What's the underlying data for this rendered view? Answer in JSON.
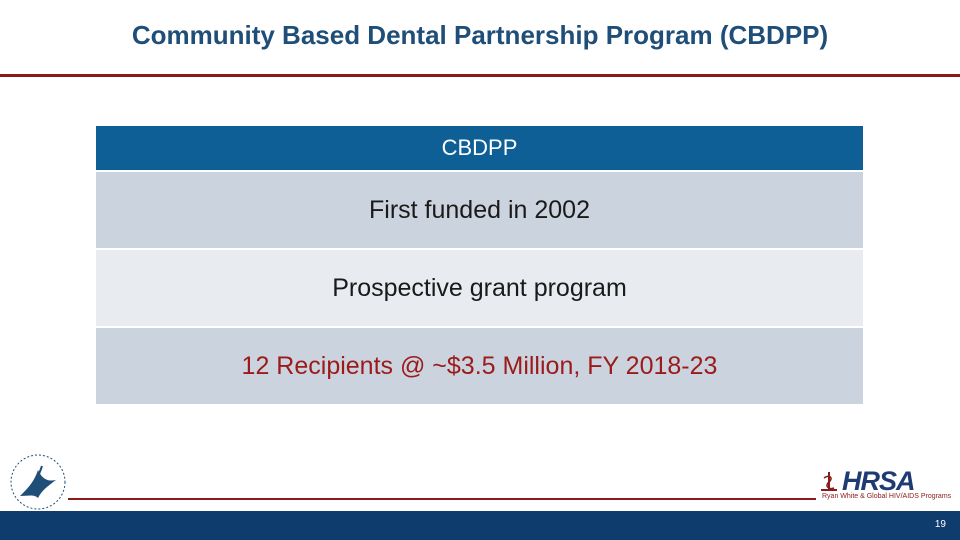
{
  "slide": {
    "title": "Community Based Dental Partnership Program (CBDPP)",
    "page_number": "19"
  },
  "table": {
    "header": "CBDPP",
    "rows": [
      "First funded in 2002",
      "Prospective grant program",
      "12 Recipients @ ~$3.5 Million, FY 2018-23"
    ]
  },
  "logos": {
    "hrsa_text": "HRSA",
    "hrsa_subtitle": "Ryan White & Global HIV/AIDS Programs"
  },
  "colors": {
    "title": "#1f4e79",
    "rule": "#8b1a1a",
    "header_bg": "#0e5f95",
    "footer_bg": "#0e3c6c",
    "highlight_text": "#9b1b1b"
  }
}
